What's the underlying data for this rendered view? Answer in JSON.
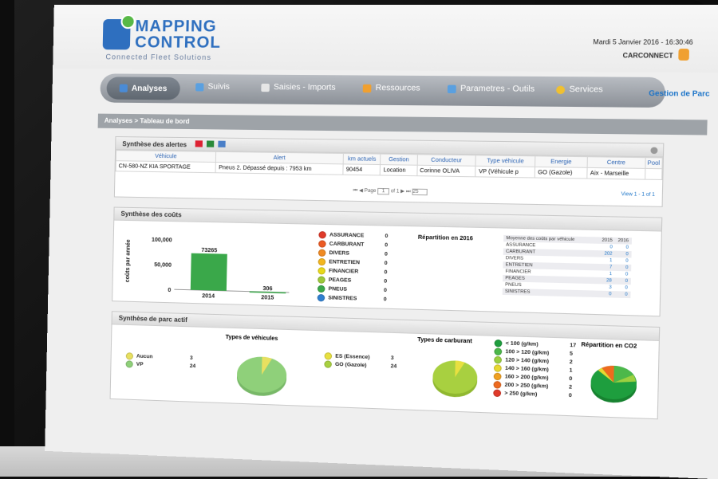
{
  "header": {
    "logo_line1": "MAPPING",
    "logo_line2": "CONTROL",
    "logo_tagline": "Connected Fleet Solutions",
    "datetime": "Mardi 5 Janvier 2016 - 16:30:46",
    "user": "CARCONNECT",
    "section": "Gestion de Parc"
  },
  "nav": {
    "items": [
      {
        "label": "Analyses",
        "icon": "chart-icon",
        "color": "#4a8bd6"
      },
      {
        "label": "Suivis",
        "icon": "monitor-icon",
        "color": "#5aa0e0"
      },
      {
        "label": "Saisies - Imports",
        "icon": "document-icon",
        "color": "#e6e6e6"
      },
      {
        "label": "Ressources",
        "icon": "car-icon",
        "color": "#f0a030"
      },
      {
        "label": "Parametres - Outils",
        "icon": "tools-icon",
        "color": "#5aa0e0"
      },
      {
        "label": "Services",
        "icon": "globe-icon",
        "color": "#f0c030"
      }
    ]
  },
  "breadcrumb": "Analyses > Tableau de bord",
  "alerts": {
    "title": "Synthèse des alertes",
    "columns": [
      "Véhicule",
      "Alert",
      "km actuels",
      "Gestion",
      "Conducteur",
      "Type véhicule",
      "Energie",
      "Centre",
      "Pool"
    ],
    "rows": [
      [
        "CN-580-NZ KIA SPORTAGE",
        "Pneus 2. Dépassé depuis : 7953 km",
        "90454",
        "Location",
        "Corinne OLIVA",
        "VP (Véhicule p",
        "GO (Gazole)",
        "Aix - Marseille",
        ""
      ]
    ],
    "page_label": "Page",
    "page": "1",
    "of_label": "of 1",
    "per_page": "25",
    "view": "View 1 - 1 of 1"
  },
  "costs": {
    "title": "Synthèse des coûts",
    "ylabel": "coûts par année",
    "categories": [
      {
        "label": "ASSURANCE",
        "value": "0",
        "color": "#e03a2a"
      },
      {
        "label": "CARBURANT",
        "value": "0",
        "color": "#ec5a22"
      },
      {
        "label": "DIVERS",
        "value": "0",
        "color": "#f08a22"
      },
      {
        "label": "ENTRETIEN",
        "value": "0",
        "color": "#f3b61e"
      },
      {
        "label": "FINANCIER",
        "value": "0",
        "color": "#e8d81a"
      },
      {
        "label": "PEAGES",
        "value": "0",
        "color": "#9cc83a"
      },
      {
        "label": "PNEUS",
        "value": "0",
        "color": "#3aa84a"
      },
      {
        "label": "SINISTRES",
        "value": "0",
        "color": "#2f7fd0"
      }
    ],
    "repartition_title": "Répartition en 2016",
    "avg_title": "Moyenne des coûts par véhicule",
    "avg_years": [
      "2015",
      "2016"
    ],
    "avg_rows": [
      [
        "ASSURANCE",
        "0",
        "0"
      ],
      [
        "CARBURANT",
        "202",
        "0"
      ],
      [
        "DIVERS",
        "1",
        "0"
      ],
      [
        "ENTRETIEN",
        "7",
        "0"
      ],
      [
        "FINANCIER",
        "1",
        "0"
      ],
      [
        "PEAGES",
        "28",
        "0"
      ],
      [
        "PNEUS",
        "3",
        "0"
      ],
      [
        "SINISTRES",
        "0",
        "0"
      ]
    ]
  },
  "chart_data": {
    "type": "bar",
    "categories": [
      "2014",
      "2015"
    ],
    "values": [
      73265,
      306
    ],
    "ylabel": "coûts par année",
    "yticks": [
      "100,000",
      "50,000",
      "0"
    ],
    "ylim": [
      0,
      100000
    ],
    "color": "#3aa84a"
  },
  "fleet": {
    "title": "Synthèse de parc actif",
    "vehicles_title": "Types de véhicules",
    "vehicles": [
      {
        "label": "Aucun",
        "value": "3",
        "color": "#e8e060"
      },
      {
        "label": "VP",
        "value": "24",
        "color": "#8fd07a"
      }
    ],
    "fuel_title": "Types de carburant",
    "fuel": [
      {
        "label": "ES (Essence)",
        "value": "3",
        "color": "#e8e040"
      },
      {
        "label": "GO (Gazole)",
        "value": "24",
        "color": "#a8d040"
      }
    ],
    "co2": [
      {
        "label": "< 100 (g/km)",
        "value": "17",
        "color": "#1e9e3e"
      },
      {
        "label": "100 > 120 (g/km)",
        "value": "5",
        "color": "#4cb84a"
      },
      {
        "label": "120 > 140 (g/km)",
        "value": "2",
        "color": "#9cd040"
      },
      {
        "label": "140 > 160 (g/km)",
        "value": "1",
        "color": "#e8d830"
      },
      {
        "label": "160 > 200 (g/km)",
        "value": "0",
        "color": "#f0a020"
      },
      {
        "label": "200 > 250 (g/km)",
        "value": "2",
        "color": "#ee6a1e"
      },
      {
        "label": "> 250 (g/km)",
        "value": "0",
        "color": "#e03a2a"
      }
    ],
    "co2_title": "Répartition en CO2"
  }
}
